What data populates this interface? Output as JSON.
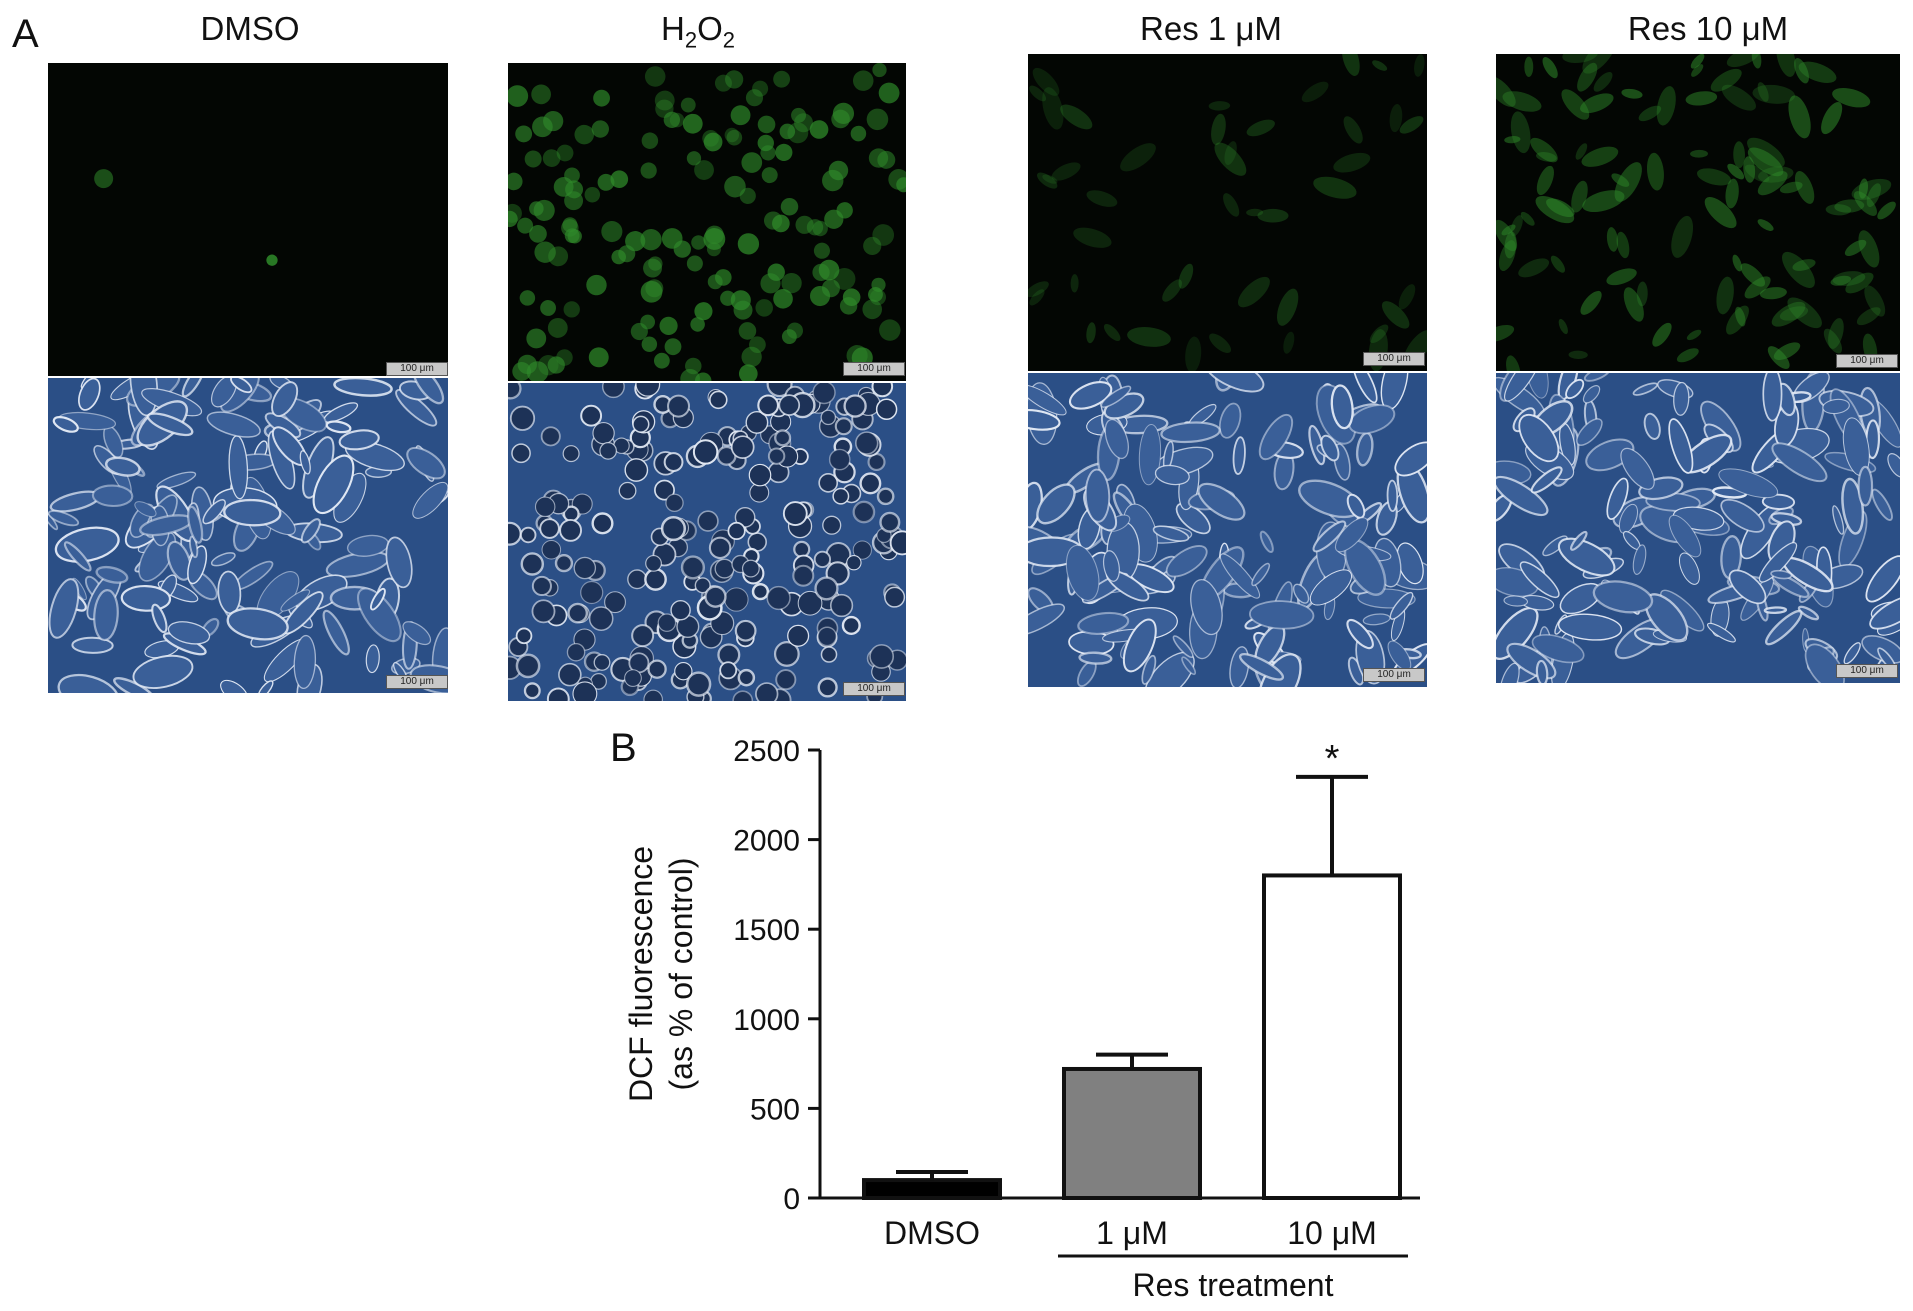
{
  "panel_a": {
    "letter": "A",
    "columns": [
      {
        "title": "DMSO",
        "title_sub": "",
        "title_tail": "",
        "fluor_scale": "100 μm",
        "phase_scale": "100 μm"
      },
      {
        "title": "H",
        "title_sub": "2",
        "title_tail": "O",
        "title_sub2": "2",
        "fluor_scale": "100 μm",
        "phase_scale": "100 μm"
      },
      {
        "title": "Res 1 μM",
        "title_sub": "",
        "title_tail": "",
        "fluor_scale": "100 μm",
        "phase_scale": "100 μm"
      },
      {
        "title": "Res 10 μM",
        "title_sub": "",
        "title_tail": "",
        "fluor_scale": "100 μm",
        "phase_scale": "100 μm"
      }
    ],
    "colors": {
      "fluor_bg": "#030603",
      "fluor_cell": "#2f8a2a",
      "phase_bg": "#2b4f86",
      "phase_edge": "#e8eef8"
    }
  },
  "panel_b": {
    "letter": "B",
    "group_label": "Res treatment",
    "significance": "*"
  },
  "chart_data": {
    "type": "bar",
    "categories": [
      "DMSO",
      "1 μM",
      "10 μM"
    ],
    "values": [
      100,
      720,
      1800
    ],
    "errors": [
      45,
      80,
      550
    ],
    "bar_colors": [
      "#000000",
      "#808080",
      "#ffffff"
    ],
    "ylabel_line1": "DCF fluorescence",
    "ylabel_line2": "(as % of control)",
    "ylim": [
      0,
      2500
    ],
    "yticks": [
      0,
      500,
      1000,
      1500,
      2000,
      2500
    ],
    "grid": false
  }
}
